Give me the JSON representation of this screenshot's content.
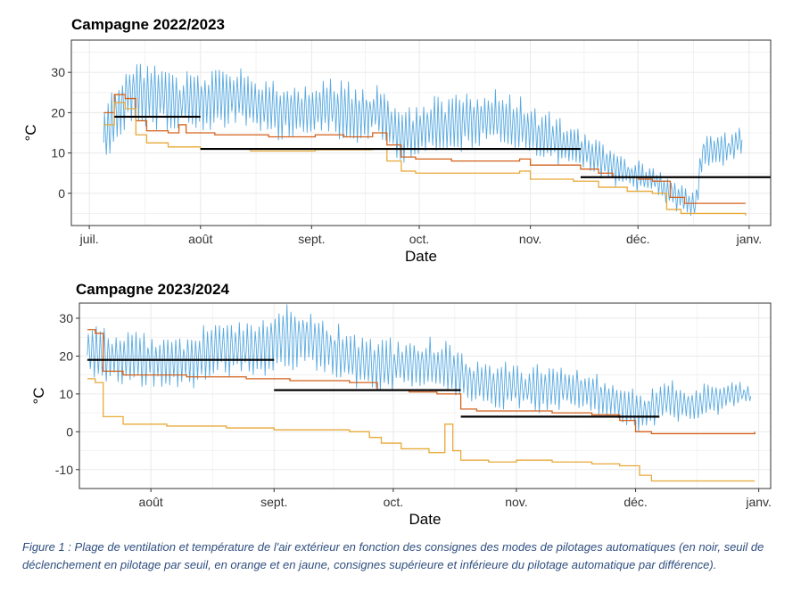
{
  "caption": "Figure 1 : Plage de ventilation et température de l'air extérieur en fonction des consignes des modes de pilotages automatiques (en noir, seuil de déclenchement en pilotage par seuil, en orange et en jaune, consignes supérieure et inférieure du pilotage automatique par différence).",
  "colors": {
    "outdoor": "#5aaae0",
    "upper": "#d4621c",
    "lower": "#e8a93a",
    "threshold": "#000000",
    "grid": "#ebebeb",
    "panel_border": "#333333"
  },
  "chart_data": [
    {
      "type": "line",
      "title": "Campagne 2022/2023",
      "xlabel": "Date",
      "ylabel": "°C",
      "grid": true,
      "xlim": [
        "2022-06-26",
        "2023-01-07"
      ],
      "ylim": [
        -8,
        38
      ],
      "x_ticks": [
        {
          "date": "2022-07-01",
          "label": "juil."
        },
        {
          "date": "2022-08-01",
          "label": "août"
        },
        {
          "date": "2022-09-01",
          "label": "sept."
        },
        {
          "date": "2022-10-01",
          "label": "oct."
        },
        {
          "date": "2022-11-01",
          "label": "nov."
        },
        {
          "date": "2022-12-01",
          "label": "déc."
        },
        {
          "date": "2023-01-01",
          "label": "janv."
        }
      ],
      "y_ticks": [
        0,
        10,
        20,
        30
      ],
      "series": [
        {
          "role": "outdoor",
          "points": [
            [
              "2022-07-05",
              13,
              6
            ],
            [
              "2022-07-12",
              25,
              7
            ],
            [
              "2022-07-19",
              24,
              7
            ],
            [
              "2022-07-26",
              22,
              6
            ],
            [
              "2022-08-02",
              23,
              6
            ],
            [
              "2022-08-09",
              24,
              6
            ],
            [
              "2022-08-16",
              22,
              6
            ],
            [
              "2022-08-23",
              20,
              6
            ],
            [
              "2022-08-30",
              20,
              6
            ],
            [
              "2022-09-06",
              21,
              6
            ],
            [
              "2022-09-13",
              19,
              6
            ],
            [
              "2022-09-20",
              20,
              6
            ],
            [
              "2022-09-26",
              13,
              5
            ],
            [
              "2022-10-03",
              16,
              6
            ],
            [
              "2022-10-10",
              17,
              6
            ],
            [
              "2022-10-17",
              18,
              6
            ],
            [
              "2022-10-24",
              18,
              6
            ],
            [
              "2022-10-31",
              16,
              5
            ],
            [
              "2022-11-07",
              13,
              5
            ],
            [
              "2022-11-14",
              11,
              5
            ],
            [
              "2022-11-21",
              8,
              4
            ],
            [
              "2022-11-28",
              5,
              3
            ],
            [
              "2022-12-05",
              3,
              3
            ],
            [
              "2022-12-12",
              -1,
              3
            ],
            [
              "2022-12-17",
              -3,
              3
            ],
            [
              "2022-12-19",
              10,
              4
            ],
            [
              "2022-12-26",
              11,
              3
            ],
            [
              "2022-12-30",
              13,
              3
            ]
          ]
        },
        {
          "role": "upper",
          "step": true,
          "points": [
            [
              "2022-07-05",
              20
            ],
            [
              "2022-07-08",
              24.5
            ],
            [
              "2022-07-11",
              23.5
            ],
            [
              "2022-07-14",
              18
            ],
            [
              "2022-07-17",
              15.5
            ],
            [
              "2022-07-23",
              15
            ],
            [
              "2022-07-26",
              17
            ],
            [
              "2022-07-28",
              15
            ],
            [
              "2022-08-05",
              14.5
            ],
            [
              "2022-08-20",
              14
            ],
            [
              "2022-09-02",
              14.5
            ],
            [
              "2022-09-10",
              14
            ],
            [
              "2022-09-18",
              15
            ],
            [
              "2022-09-22",
              12
            ],
            [
              "2022-09-26",
              9
            ],
            [
              "2022-09-30",
              8.5
            ],
            [
              "2022-10-10",
              8
            ],
            [
              "2022-10-29",
              8.5
            ],
            [
              "2022-11-01",
              7
            ],
            [
              "2022-11-15",
              6
            ],
            [
              "2022-11-20",
              5
            ],
            [
              "2022-11-24",
              4
            ],
            [
              "2022-12-01",
              3.5
            ],
            [
              "2022-12-05",
              3
            ],
            [
              "2022-12-10",
              -1
            ],
            [
              "2022-12-14",
              -2.5
            ],
            [
              "2022-12-31",
              -2.5
            ]
          ]
        },
        {
          "role": "lower",
          "step": true,
          "points": [
            [
              "2022-07-05",
              17
            ],
            [
              "2022-07-08",
              22.5
            ],
            [
              "2022-07-11",
              21
            ],
            [
              "2022-07-14",
              14.5
            ],
            [
              "2022-07-17",
              12.5
            ],
            [
              "2022-07-23",
              11.5
            ],
            [
              "2022-08-01",
              11
            ],
            [
              "2022-08-15",
              10.5
            ],
            [
              "2022-09-02",
              10.8
            ],
            [
              "2022-09-18",
              11
            ],
            [
              "2022-09-22",
              8
            ],
            [
              "2022-09-26",
              5.5
            ],
            [
              "2022-09-30",
              5
            ],
            [
              "2022-10-20",
              5
            ],
            [
              "2022-10-29",
              5.5
            ],
            [
              "2022-11-01",
              3.5
            ],
            [
              "2022-11-13",
              3
            ],
            [
              "2022-11-20",
              1.5
            ],
            [
              "2022-11-28",
              0.5
            ],
            [
              "2022-12-05",
              0
            ],
            [
              "2022-12-09",
              -4
            ],
            [
              "2022-12-13",
              -5
            ],
            [
              "2022-12-31",
              -5.5
            ]
          ]
        },
        {
          "role": "threshold",
          "segments": [
            [
              "2022-07-08",
              "2022-08-01",
              19
            ],
            [
              "2022-08-01",
              "2022-11-15",
              11
            ],
            [
              "2022-11-15",
              "2023-01-07",
              4
            ]
          ]
        }
      ]
    },
    {
      "type": "line",
      "title": "Campagne 2023/2024",
      "xlabel": "Date",
      "ylabel": "°C",
      "grid": true,
      "xlim": [
        "2023-07-14",
        "2024-01-04"
      ],
      "ylim": [
        -15,
        34
      ],
      "x_ticks": [
        {
          "date": "2023-08-01",
          "label": "août"
        },
        {
          "date": "2023-09-01",
          "label": "sept."
        },
        {
          "date": "2023-10-01",
          "label": "oct."
        },
        {
          "date": "2023-11-01",
          "label": "nov."
        },
        {
          "date": "2023-12-01",
          "label": "déc."
        },
        {
          "date": "2024-01-01",
          "label": "janv."
        }
      ],
      "y_ticks": [
        -10,
        0,
        10,
        20,
        30
      ],
      "series": [
        {
          "role": "outdoor",
          "points": [
            [
              "2023-07-16",
              21,
              6
            ],
            [
              "2023-07-22",
              19,
              6
            ],
            [
              "2023-07-29",
              19,
              6
            ],
            [
              "2023-08-05",
              18,
              6
            ],
            [
              "2023-08-12",
              19,
              6
            ],
            [
              "2023-08-19",
              22,
              6
            ],
            [
              "2023-08-26",
              21,
              6
            ],
            [
              "2023-09-02",
              24,
              7
            ],
            [
              "2023-09-09",
              25,
              7
            ],
            [
              "2023-09-16",
              21,
              6
            ],
            [
              "2023-09-23",
              18,
              6
            ],
            [
              "2023-09-30",
              17,
              6
            ],
            [
              "2023-10-07",
              18,
              6
            ],
            [
              "2023-10-14",
              17,
              6
            ],
            [
              "2023-10-21",
              13,
              5
            ],
            [
              "2023-10-28",
              12,
              5
            ],
            [
              "2023-11-04",
              11,
              5
            ],
            [
              "2023-11-11",
              11,
              5
            ],
            [
              "2023-11-18",
              11,
              5
            ],
            [
              "2023-11-25",
              8,
              4
            ],
            [
              "2023-12-02",
              5,
              4
            ],
            [
              "2023-12-09",
              8,
              4
            ],
            [
              "2023-12-16",
              7,
              4
            ],
            [
              "2023-12-23",
              9,
              3
            ],
            [
              "2023-12-30",
              10,
              2
            ]
          ]
        },
        {
          "role": "upper",
          "step": true,
          "points": [
            [
              "2023-07-16",
              27
            ],
            [
              "2023-07-18",
              26
            ],
            [
              "2023-07-20",
              16
            ],
            [
              "2023-07-25",
              15
            ],
            [
              "2023-08-10",
              14.5
            ],
            [
              "2023-08-25",
              14
            ],
            [
              "2023-09-05",
              13.5
            ],
            [
              "2023-09-20",
              13
            ],
            [
              "2023-09-27",
              11
            ],
            [
              "2023-10-05",
              10.5
            ],
            [
              "2023-10-12",
              10
            ],
            [
              "2023-10-18",
              6
            ],
            [
              "2023-10-22",
              5.5
            ],
            [
              "2023-11-10",
              5
            ],
            [
              "2023-11-20",
              4.5
            ],
            [
              "2023-11-27",
              3
            ],
            [
              "2023-12-01",
              0
            ],
            [
              "2023-12-05",
              -0.5
            ],
            [
              "2023-12-25",
              -0.5
            ],
            [
              "2023-12-31",
              0
            ]
          ]
        },
        {
          "role": "lower",
          "step": true,
          "points": [
            [
              "2023-07-16",
              14
            ],
            [
              "2023-07-18",
              13
            ],
            [
              "2023-07-20",
              4
            ],
            [
              "2023-07-25",
              2
            ],
            [
              "2023-08-05",
              1.5
            ],
            [
              "2023-08-20",
              1
            ],
            [
              "2023-09-01",
              0.5
            ],
            [
              "2023-09-20",
              0
            ],
            [
              "2023-09-25",
              -1.5
            ],
            [
              "2023-09-28",
              -3
            ],
            [
              "2023-10-03",
              -4.5
            ],
            [
              "2023-10-10",
              -5.5
            ],
            [
              "2023-10-14",
              2
            ],
            [
              "2023-10-16",
              -5
            ],
            [
              "2023-10-18",
              -7.5
            ],
            [
              "2023-10-25",
              -8
            ],
            [
              "2023-11-01",
              -7.5
            ],
            [
              "2023-11-10",
              -8
            ],
            [
              "2023-11-20",
              -8.5
            ],
            [
              "2023-11-27",
              -9
            ],
            [
              "2023-12-02",
              -11.5
            ],
            [
              "2023-12-05",
              -13
            ],
            [
              "2023-12-31",
              -13
            ]
          ]
        },
        {
          "role": "threshold",
          "segments": [
            [
              "2023-07-16",
              "2023-09-01",
              19
            ],
            [
              "2023-09-01",
              "2023-10-18",
              11
            ],
            [
              "2023-10-18",
              "2023-12-07",
              4
            ]
          ]
        }
      ]
    }
  ]
}
